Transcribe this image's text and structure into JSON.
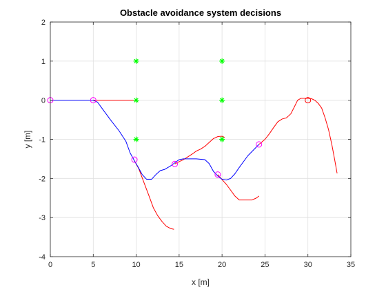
{
  "chart_data": {
    "type": "line",
    "title": "Obstacle avoidance system decisions",
    "xlabel": "x [m]",
    "ylabel": "y [m]",
    "xlim": [
      0,
      35
    ],
    "ylim": [
      -4,
      2
    ],
    "xticks": [
      0,
      5,
      10,
      15,
      20,
      25,
      30,
      35
    ],
    "yticks": [
      -4,
      -3,
      -2,
      -1,
      0,
      1,
      2
    ],
    "xtick_labels": [
      "0",
      "5",
      "10",
      "15",
      "20",
      "25",
      "30",
      "35"
    ],
    "ytick_labels": [
      "-4",
      "-3",
      "-2",
      "-1",
      "0",
      "1",
      "2"
    ],
    "grid": true,
    "legend": "none",
    "colors": {
      "executed_path": "#0000ff",
      "candidate_paths": "#ff0000",
      "obstacles": "#00ff00",
      "decision_points": "#ff00ff",
      "goal": "#ff0000",
      "grid": "#dfdfdf",
      "axes": "#262626"
    },
    "series": [
      {
        "kind": "executed",
        "x": [
          0,
          5,
          5.5,
          6,
          7,
          8,
          8.8,
          9.3,
          9.8,
          10.2,
          10.7,
          11.2,
          11.8,
          12.3,
          12.8,
          13.3,
          14.0,
          14.5,
          14.8,
          15.0,
          15.5,
          16,
          17,
          18,
          18.5,
          19,
          19.6,
          20,
          20.5,
          21,
          21.5,
          22,
          23,
          24.3
        ],
        "y": [
          0,
          0,
          -0.05,
          -0.2,
          -0.5,
          -0.78,
          -1.05,
          -1.35,
          -1.55,
          -1.7,
          -1.9,
          -2.02,
          -2.02,
          -1.9,
          -1.8,
          -1.77,
          -1.68,
          -1.6,
          -1.55,
          -1.52,
          -1.5,
          -1.5,
          -1.5,
          -1.52,
          -1.62,
          -1.82,
          -1.96,
          -2.02,
          -2.04,
          -2.0,
          -1.88,
          -1.72,
          -1.42,
          -1.13
        ]
      },
      {
        "kind": "candidate",
        "x": [
          5,
          10
        ],
        "y": [
          0,
          0
        ]
      },
      {
        "kind": "candidate",
        "x": [
          9.8,
          10.3,
          10.9,
          11.5,
          12,
          12.5,
          13,
          13.5,
          14.0,
          14.4
        ],
        "y": [
          -1.55,
          -1.75,
          -2.1,
          -2.45,
          -2.75,
          -2.95,
          -3.1,
          -3.22,
          -3.28,
          -3.3
        ]
      },
      {
        "kind": "candidate",
        "x": [
          14.5,
          15,
          15.5,
          16,
          16.5,
          17,
          17.5,
          18,
          18.5,
          19,
          19.5,
          20,
          20.3
        ],
        "y": [
          -1.63,
          -1.57,
          -1.52,
          -1.45,
          -1.38,
          -1.3,
          -1.25,
          -1.18,
          -1.08,
          -0.98,
          -0.93,
          -0.92,
          -0.95
        ]
      },
      {
        "kind": "candidate",
        "x": [
          19.5,
          20,
          20.5,
          21,
          21.5,
          22,
          22.5,
          23,
          23.5,
          24,
          24.3
        ],
        "y": [
          -1.9,
          -2.03,
          -2.15,
          -2.3,
          -2.45,
          -2.55,
          -2.55,
          -2.55,
          -2.55,
          -2.5,
          -2.45
        ]
      },
      {
        "kind": "candidate",
        "x": [
          24.3,
          25,
          25.5,
          26,
          26.5,
          27,
          27.5,
          28,
          28.4,
          28.8,
          29.2,
          29.6,
          30,
          30.4,
          30.8,
          31.2,
          31.6,
          32,
          32.4,
          32.8,
          33.1,
          33.4
        ],
        "y": [
          -1.13,
          -1.0,
          -0.86,
          -0.7,
          -0.55,
          -0.48,
          -0.45,
          -0.35,
          -0.18,
          0.0,
          0.05,
          0.05,
          0.05,
          0.04,
          0.0,
          -0.08,
          -0.2,
          -0.45,
          -0.75,
          -1.15,
          -1.5,
          -1.87
        ]
      }
    ],
    "obstacles": {
      "x": [
        10,
        10,
        10,
        20,
        20,
        20
      ],
      "y": [
        1,
        0,
        -1,
        1,
        0,
        -1
      ]
    },
    "decision_points": {
      "x": [
        0,
        5,
        9.8,
        14.5,
        19.5,
        24.3
      ],
      "y": [
        0,
        0,
        -1.52,
        -1.63,
        -1.9,
        -1.13
      ]
    },
    "goal": {
      "x": 30,
      "y": 0
    }
  }
}
